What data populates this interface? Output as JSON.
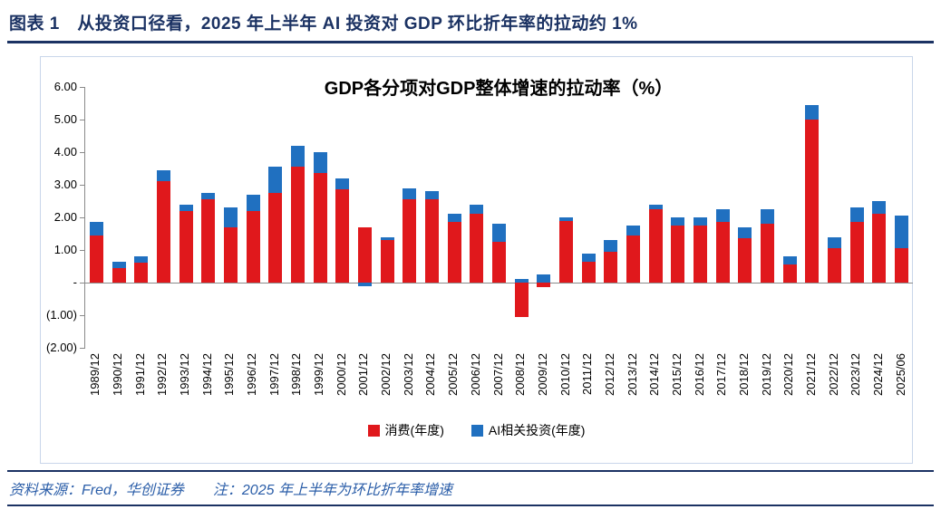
{
  "header": {
    "title": "图表 1　从投资口径看，2025 年上半年 AI 投资对 GDP 环比折年率的拉动约 1%"
  },
  "footer": {
    "source": "资料来源：Fred，华创证券",
    "note": "注：2025 年上半年为环比折年率增速"
  },
  "colors": {
    "consumption": "#e0181c",
    "ai_investment": "#2070c0",
    "header_navy": "#1b3263",
    "footer_blue": "#2a5da8",
    "axis_gray": "#8a8a8a"
  },
  "chart_data": {
    "type": "bar",
    "stacked": true,
    "title": "GDP各分项对GDP整体增速的拉动率（%）",
    "xlabel": "",
    "ylabel": "",
    "ylim": [
      -2,
      6
    ],
    "grid": false,
    "legend_position": "bottom",
    "y_ticks": [
      {
        "value": 6,
        "label": "6.00"
      },
      {
        "value": 5,
        "label": "5.00"
      },
      {
        "value": 4,
        "label": "4.00"
      },
      {
        "value": 3,
        "label": "3.00"
      },
      {
        "value": 2,
        "label": "2.00"
      },
      {
        "value": 1,
        "label": "1.00"
      },
      {
        "value": 0,
        "label": "-"
      },
      {
        "value": -1,
        "label": "(1.00)"
      },
      {
        "value": -2,
        "label": "(2.00)"
      }
    ],
    "categories": [
      "1989/12",
      "1990/12",
      "1991/12",
      "1992/12",
      "1993/12",
      "1994/12",
      "1995/12",
      "1996/12",
      "1997/12",
      "1998/12",
      "1999/12",
      "2000/12",
      "2001/12",
      "2002/12",
      "2003/12",
      "2004/12",
      "2005/12",
      "2006/12",
      "2007/12",
      "2008/12",
      "2009/12",
      "2010/12",
      "2011/12",
      "2012/12",
      "2013/12",
      "2014/12",
      "2015/12",
      "2016/12",
      "2017/12",
      "2018/12",
      "2019/12",
      "2020/12",
      "2021/12",
      "2022/12",
      "2023/12",
      "2024/12",
      "2025/06"
    ],
    "series": [
      {
        "key": "consumption",
        "name": "消费(年度)",
        "values": [
          1.45,
          0.45,
          0.6,
          3.1,
          2.2,
          2.55,
          1.7,
          2.2,
          2.75,
          3.55,
          3.35,
          2.85,
          1.7,
          1.3,
          2.55,
          2.55,
          1.85,
          2.1,
          1.25,
          -1.05,
          -0.15,
          1.9,
          0.65,
          0.95,
          1.45,
          2.25,
          1.75,
          1.75,
          1.85,
          1.35,
          1.8,
          0.55,
          5.0,
          1.05,
          1.85,
          2.1,
          1.05
        ]
      },
      {
        "key": "ai_investment",
        "name": "AI相关投资(年度)",
        "values": [
          0.4,
          0.2,
          0.2,
          0.35,
          0.2,
          0.2,
          0.6,
          0.5,
          0.8,
          0.65,
          0.65,
          0.35,
          -0.1,
          0.1,
          0.35,
          0.25,
          0.25,
          0.3,
          0.55,
          0.1,
          0.25,
          0.1,
          0.25,
          0.35,
          0.3,
          0.15,
          0.25,
          0.25,
          0.4,
          0.35,
          0.45,
          0.25,
          0.45,
          0.35,
          0.45,
          0.4,
          1.0
        ]
      }
    ]
  }
}
